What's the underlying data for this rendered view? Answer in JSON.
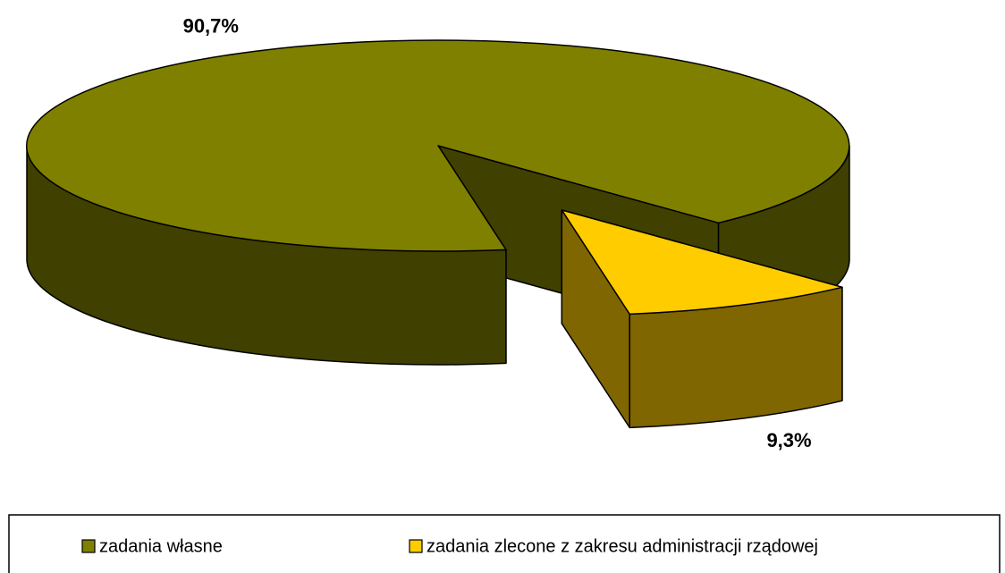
{
  "chart_data": {
    "type": "pie",
    "categories": [
      "zadania własne",
      "zadania zlecone z zakresu administracji rządowej"
    ],
    "values": [
      90.7,
      9.3
    ],
    "value_labels": [
      "90,7%",
      "9,3%"
    ],
    "colors": [
      "#808000",
      "#ffcc00"
    ],
    "legend": "bottom"
  }
}
